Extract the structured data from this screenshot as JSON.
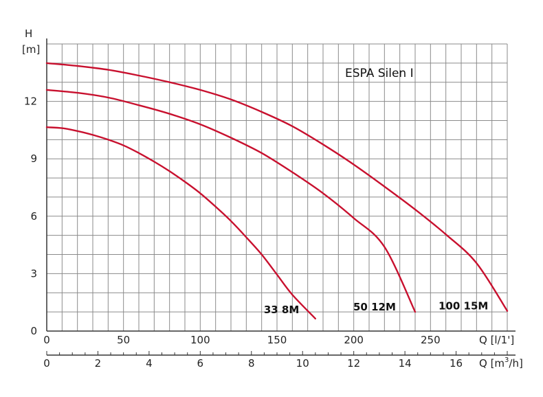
{
  "chart_data": {
    "type": "line",
    "title": "ESPA Silen I",
    "ylabel": "H",
    "yunit": "[m]",
    "xlabel_top": "Q [l/1']",
    "xlabel_bottom": "Q [m³/h]",
    "xlabel_bottom_main": "Q [m",
    "xlabel_bottom_sup": "3",
    "xlabel_bottom_tail": "/h]",
    "xlim": [
      0,
      300
    ],
    "ylim": [
      0,
      15
    ],
    "xticks": [
      0,
      50,
      100,
      150,
      200,
      250
    ],
    "xticks_m3h": [
      0,
      2,
      4,
      6,
      8,
      10,
      12,
      14,
      16
    ],
    "yticks": [
      0,
      3,
      6,
      9,
      12
    ],
    "grid": true,
    "colors": {
      "curve": "#c8102e",
      "grid": "#8a8a8a",
      "axis": "#333333"
    },
    "series": [
      {
        "name": "33 8M",
        "x": [
          0,
          10,
          20,
          30,
          40,
          50,
          60,
          70,
          80,
          90,
          100,
          110,
          120,
          130,
          140,
          150,
          160,
          175
        ],
        "y": [
          10.65,
          10.6,
          10.45,
          10.25,
          10.0,
          9.7,
          9.3,
          8.85,
          8.35,
          7.8,
          7.2,
          6.5,
          5.75,
          4.9,
          4.0,
          2.95,
          1.9,
          0.65
        ]
      },
      {
        "name": "50 12M",
        "x": [
          0,
          20,
          40,
          60,
          80,
          100,
          120,
          140,
          160,
          180,
          200,
          220,
          240
        ],
        "y": [
          12.6,
          12.45,
          12.2,
          11.8,
          11.35,
          10.8,
          10.1,
          9.3,
          8.3,
          7.2,
          5.9,
          4.4,
          1.0
        ]
      },
      {
        "name": "100 15M",
        "x": [
          0,
          20,
          40,
          60,
          80,
          100,
          120,
          140,
          160,
          180,
          200,
          220,
          240,
          260,
          280,
          300
        ],
        "y": [
          14.0,
          13.85,
          13.65,
          13.35,
          13.0,
          12.6,
          12.1,
          11.45,
          10.7,
          9.75,
          8.7,
          7.55,
          6.35,
          5.05,
          3.55,
          1.05
        ]
      }
    ]
  }
}
